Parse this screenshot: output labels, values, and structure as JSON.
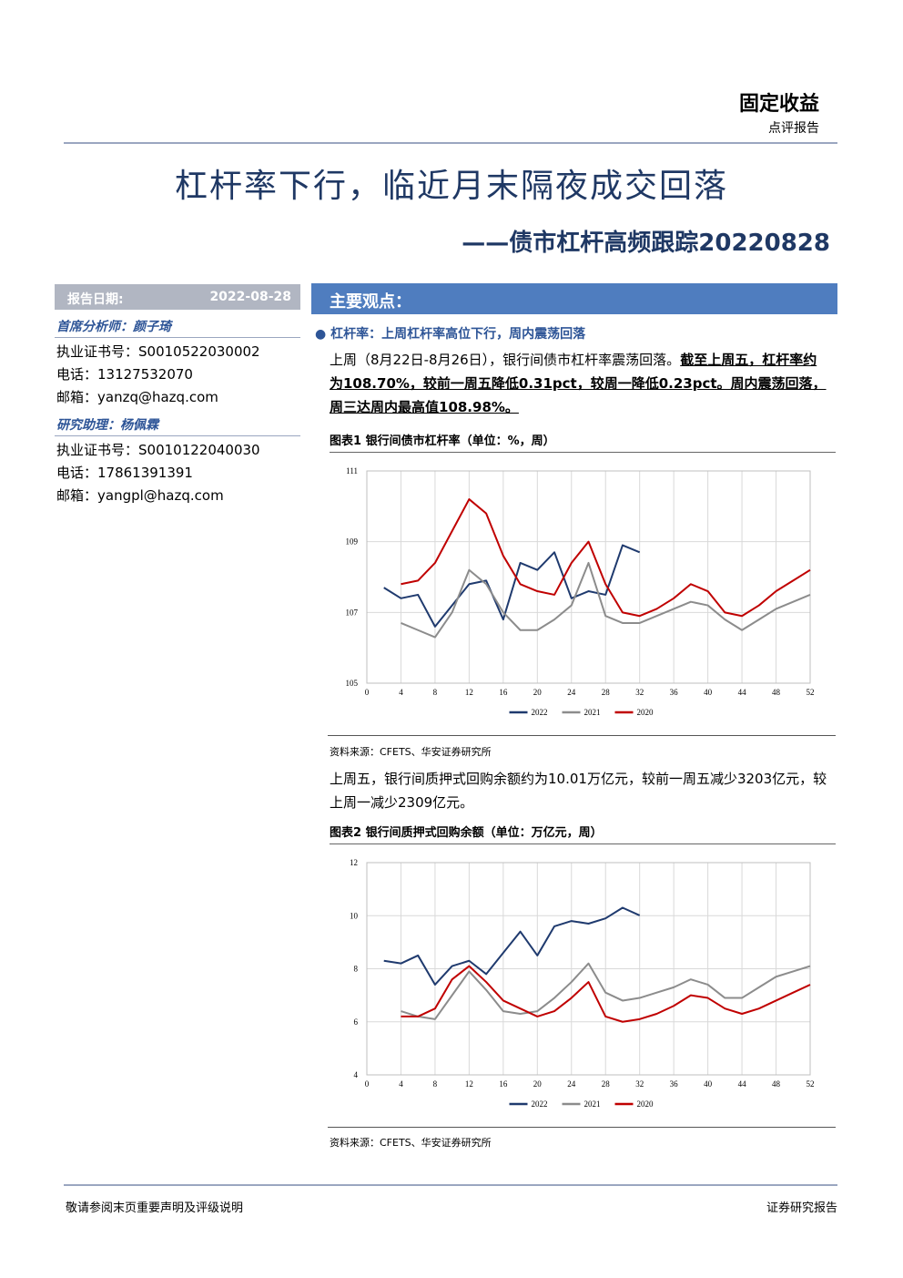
{
  "header": {
    "category": "固定收益",
    "subcategory": "点评报告"
  },
  "title": "杠杆率下行，临近月末隔夜成交回落",
  "subtitle": "——债市杠杆高频跟踪20220828",
  "sidebar": {
    "date_label": "报告日期:",
    "date": "2022-08-28",
    "people": [
      {
        "role": "首席分析师：颜子琦",
        "lines": [
          "执业证书号：S0010522030002",
          "电话：13127532070",
          "邮箱：yanzq@hazq.com"
        ]
      },
      {
        "role": "研究助理：杨佩霖",
        "lines": [
          "执业证书号：S0010122040030",
          "电话：17861391391",
          "邮箱：yangpl@hazq.com"
        ]
      }
    ]
  },
  "main": {
    "section": "主要观点：",
    "bullet": "杠杆率：上周杠杆率高位下行，周内震荡回落",
    "para1": {
      "text": "上周（8月22日-8月26日），银行间债市杠杆率震荡回落。",
      "emphasis": "截至上周五，杠杆率约为108.70%，较前一周五降低0.31pct，较周一降低0.23pct。周内震荡回落，周三达周内最高值108.98%。"
    },
    "figure1": {
      "caption": "图表1 银行间债市杠杆率（单位：%，周）",
      "source": "资料来源：CFETS、华安证券研究所"
    },
    "para2": "上周五，银行间质押式回购余额约为10.01万亿元，较前一周五减少3203亿元，较上周一减少2309亿元。",
    "figure2": {
      "caption": "图表2 银行间质押式回购余额（单位：万亿元，周）",
      "source": "资料来源：CFETS、华安证券研究所"
    }
  },
  "footer": {
    "left": "敬请参阅末页重要声明及评级说明",
    "right": "证券研究报告"
  },
  "chart_data": [
    {
      "type": "line",
      "xlim": [
        0,
        52
      ],
      "xticks": [
        0,
        4,
        8,
        12,
        16,
        20,
        24,
        28,
        32,
        36,
        40,
        44,
        48,
        52
      ],
      "ylim": [
        105,
        111
      ],
      "yticks": [
        105,
        107,
        109,
        111
      ],
      "grid": true,
      "legend": "bottom",
      "x": [
        2,
        4,
        6,
        8,
        10,
        12,
        14,
        16,
        18,
        20,
        22,
        24,
        26,
        28,
        30,
        32,
        34,
        36,
        38,
        40,
        42,
        44,
        46,
        48,
        50,
        52
      ],
      "series": [
        {
          "name": "2022",
          "color": "#1f3a6e",
          "values": [
            107.7,
            107.4,
            107.5,
            106.6,
            107.2,
            107.8,
            107.9,
            106.8,
            108.4,
            108.2,
            108.7,
            107.4,
            107.6,
            107.5,
            108.9,
            108.7,
            null,
            null,
            null,
            null,
            null,
            null,
            null,
            null,
            null,
            null
          ]
        },
        {
          "name": "2021",
          "color": "#8c8c8c",
          "values": [
            null,
            106.7,
            106.5,
            106.3,
            107.0,
            108.2,
            107.8,
            107.0,
            106.5,
            106.5,
            106.8,
            107.2,
            108.4,
            106.9,
            106.7,
            106.7,
            106.9,
            107.1,
            107.3,
            107.2,
            106.8,
            106.5,
            106.8,
            107.1,
            107.3,
            107.5
          ]
        },
        {
          "name": "2020",
          "color": "#c00000",
          "values": [
            null,
            107.8,
            107.9,
            108.4,
            109.3,
            110.2,
            109.8,
            108.6,
            107.8,
            107.6,
            107.5,
            108.4,
            109.0,
            107.8,
            107.0,
            106.9,
            107.1,
            107.4,
            107.8,
            107.6,
            107.0,
            106.9,
            107.2,
            107.6,
            107.9,
            108.2
          ]
        }
      ]
    },
    {
      "type": "line",
      "xlim": [
        0,
        52
      ],
      "xticks": [
        0,
        4,
        8,
        12,
        16,
        20,
        24,
        28,
        32,
        36,
        40,
        44,
        48,
        52
      ],
      "ylim": [
        4,
        12
      ],
      "yticks": [
        4,
        6,
        8,
        10,
        12
      ],
      "grid": true,
      "legend": "bottom",
      "x": [
        2,
        4,
        6,
        8,
        10,
        12,
        14,
        16,
        18,
        20,
        22,
        24,
        26,
        28,
        30,
        32,
        34,
        36,
        38,
        40,
        42,
        44,
        46,
        48,
        50,
        52
      ],
      "series": [
        {
          "name": "2022",
          "color": "#1f3a6e",
          "values": [
            8.3,
            8.2,
            8.5,
            7.4,
            8.1,
            8.3,
            7.8,
            8.6,
            9.4,
            8.5,
            9.6,
            9.8,
            9.7,
            9.9,
            10.3,
            10.01,
            null,
            null,
            null,
            null,
            null,
            null,
            null,
            null,
            null,
            null
          ]
        },
        {
          "name": "2021",
          "color": "#8c8c8c",
          "values": [
            null,
            6.4,
            6.2,
            6.1,
            7.0,
            7.9,
            7.2,
            6.4,
            6.3,
            6.4,
            6.9,
            7.5,
            8.2,
            7.1,
            6.8,
            6.9,
            7.1,
            7.3,
            7.6,
            7.4,
            6.9,
            6.9,
            7.3,
            7.7,
            7.9,
            8.1
          ]
        },
        {
          "name": "2020",
          "color": "#c00000",
          "values": [
            null,
            6.2,
            6.2,
            6.5,
            7.6,
            8.1,
            7.5,
            6.8,
            6.5,
            6.2,
            6.4,
            6.9,
            7.5,
            6.2,
            6.0,
            6.1,
            6.3,
            6.6,
            7.0,
            6.9,
            6.5,
            6.3,
            6.5,
            6.8,
            7.1,
            7.4
          ]
        }
      ]
    }
  ]
}
